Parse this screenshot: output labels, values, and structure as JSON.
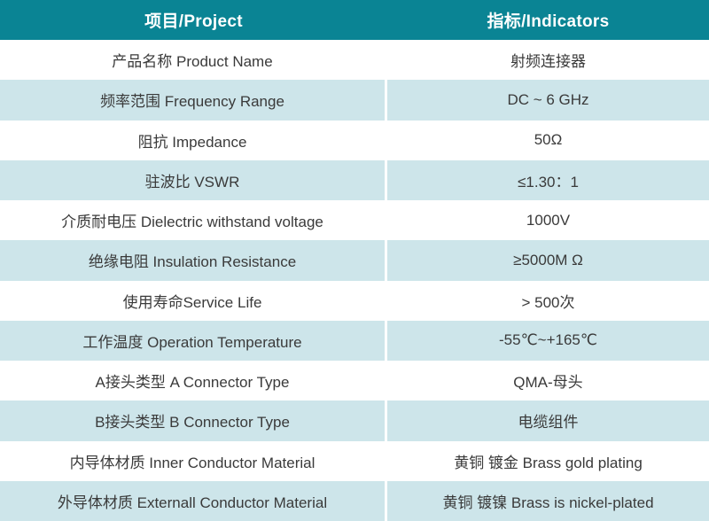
{
  "colors": {
    "header_bg": "#0a8494",
    "header_text": "#ffffff",
    "row_bg": "#ffffff",
    "alt_row_bg": "#cde5ea",
    "body_text": "#3a3a3a"
  },
  "table": {
    "header": {
      "project_label": "项目/Project",
      "indicators_label": "指标/Indicators"
    },
    "rows": [
      {
        "project": "产品名称 Product Name",
        "indicator": "射频连接器"
      },
      {
        "project": "频率范围 Frequency Range",
        "indicator": "DC ~ 6 GHz"
      },
      {
        "project": "阻抗 Impedance",
        "indicator": "50Ω"
      },
      {
        "project": "驻波比 VSWR",
        "indicator": "≤1.30：1"
      },
      {
        "project": "介质耐电压 Dielectric withstand voltage",
        "indicator": "1000V"
      },
      {
        "project": "绝缘电阻 Insulation Resistance",
        "indicator": "≥5000M Ω"
      },
      {
        "project": "使用寿命Service Life",
        "indicator": "> 500次"
      },
      {
        "project": "工作温度 Operation Temperature",
        "indicator": "-55℃~+165℃"
      },
      {
        "project": "A接头类型 A Connector Type",
        "indicator": "QMA-母头"
      },
      {
        "project": "B接头类型 B Connector Type",
        "indicator": "电缆组件"
      },
      {
        "project": "内导体材质 Inner Conductor Material",
        "indicator": "黄铜 镀金 Brass gold plating"
      },
      {
        "project": "外导体材质 Externall Conductor Material",
        "indicator": "黄铜 镀镍 Brass is nickel-plated"
      }
    ]
  }
}
